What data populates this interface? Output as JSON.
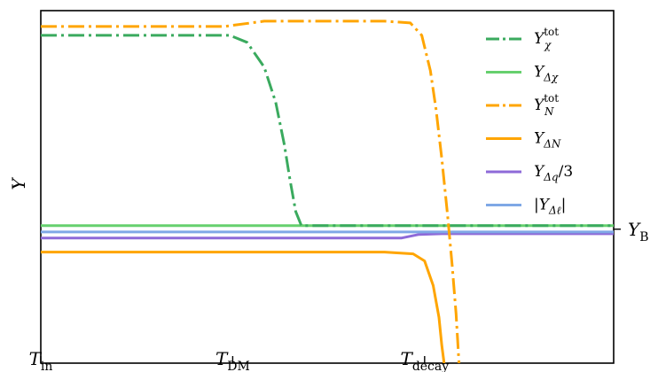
{
  "chart_data": {
    "type": "line",
    "title": "",
    "ylabel": "Y",
    "xlabel": "",
    "x_range": [
      0,
      1
    ],
    "y_range": [
      0,
      1
    ],
    "grid": false,
    "legend_placement": "top-right",
    "x_ticks": [
      {
        "x": 0.0,
        "label": "T",
        "sub": "in"
      },
      {
        "x": 0.335,
        "label": "T",
        "sub": "DM"
      },
      {
        "x": 0.67,
        "label": "T",
        "sub": "decay"
      }
    ],
    "y_ticks": [
      {
        "y": 0.38,
        "label": "Y",
        "sub": "B"
      }
    ],
    "colors": {
      "green_dark": "#3aaa5e",
      "green_light": "#66d06e",
      "orange": "#ffa500",
      "purple": "#8e6ad8",
      "blue": "#7fa8e6"
    },
    "series": [
      {
        "name_main": "Y",
        "name_sup": "tot",
        "name_sub": "χ",
        "name_suffix": "",
        "style": "dashdot",
        "color": "#3aaa5e",
        "points": [
          [
            0,
            0.93
          ],
          [
            0.33,
            0.93
          ],
          [
            0.36,
            0.91
          ],
          [
            0.39,
            0.84
          ],
          [
            0.41,
            0.74
          ],
          [
            0.425,
            0.62
          ],
          [
            0.435,
            0.52
          ],
          [
            0.445,
            0.43
          ],
          [
            0.455,
            0.39
          ],
          [
            1.0,
            0.39
          ]
        ]
      },
      {
        "name_main": "Y",
        "name_sup": "",
        "name_sub": "Δχ",
        "name_suffix": "",
        "style": "solid",
        "color": "#66d06e",
        "points": [
          [
            0,
            0.39
          ],
          [
            1.0,
            0.39
          ]
        ]
      },
      {
        "name_main": "Y",
        "name_sup": "tot",
        "name_sub": "N",
        "name_suffix": "",
        "style": "dashdot",
        "color": "#ffa500",
        "points": [
          [
            0,
            0.955
          ],
          [
            0.32,
            0.955
          ],
          [
            0.39,
            0.97
          ],
          [
            0.47,
            0.97
          ],
          [
            0.6,
            0.97
          ],
          [
            0.645,
            0.965
          ],
          [
            0.665,
            0.93
          ],
          [
            0.68,
            0.83
          ],
          [
            0.69,
            0.72
          ],
          [
            0.7,
            0.58
          ],
          [
            0.71,
            0.42
          ],
          [
            0.718,
            0.28
          ],
          [
            0.725,
            0.14
          ],
          [
            0.73,
            0.0
          ]
        ]
      },
      {
        "name_main": "Y",
        "name_sup": "",
        "name_sub": "ΔN",
        "name_suffix": "",
        "style": "solid",
        "color": "#ffa500",
        "points": [
          [
            0,
            0.315
          ],
          [
            0.6,
            0.315
          ],
          [
            0.65,
            0.31
          ],
          [
            0.67,
            0.29
          ],
          [
            0.685,
            0.22
          ],
          [
            0.695,
            0.13
          ],
          [
            0.7,
            0.05
          ],
          [
            0.704,
            0.0
          ]
        ]
      },
      {
        "name_main": "Y",
        "name_sup": "",
        "name_sub": "Δq",
        "name_suffix": "/3",
        "style": "solid",
        "color": "#8e6ad8",
        "points": [
          [
            0,
            0.355
          ],
          [
            0.63,
            0.355
          ],
          [
            0.66,
            0.365
          ],
          [
            0.7,
            0.367
          ],
          [
            1.0,
            0.367
          ]
        ]
      },
      {
        "name_main": "|Y",
        "name_sup": "",
        "name_sub": "Δℓ",
        "name_suffix": "|",
        "style": "solid",
        "color": "#7fa8e6",
        "points": [
          [
            0,
            0.372
          ],
          [
            1.0,
            0.372
          ]
        ]
      }
    ]
  }
}
